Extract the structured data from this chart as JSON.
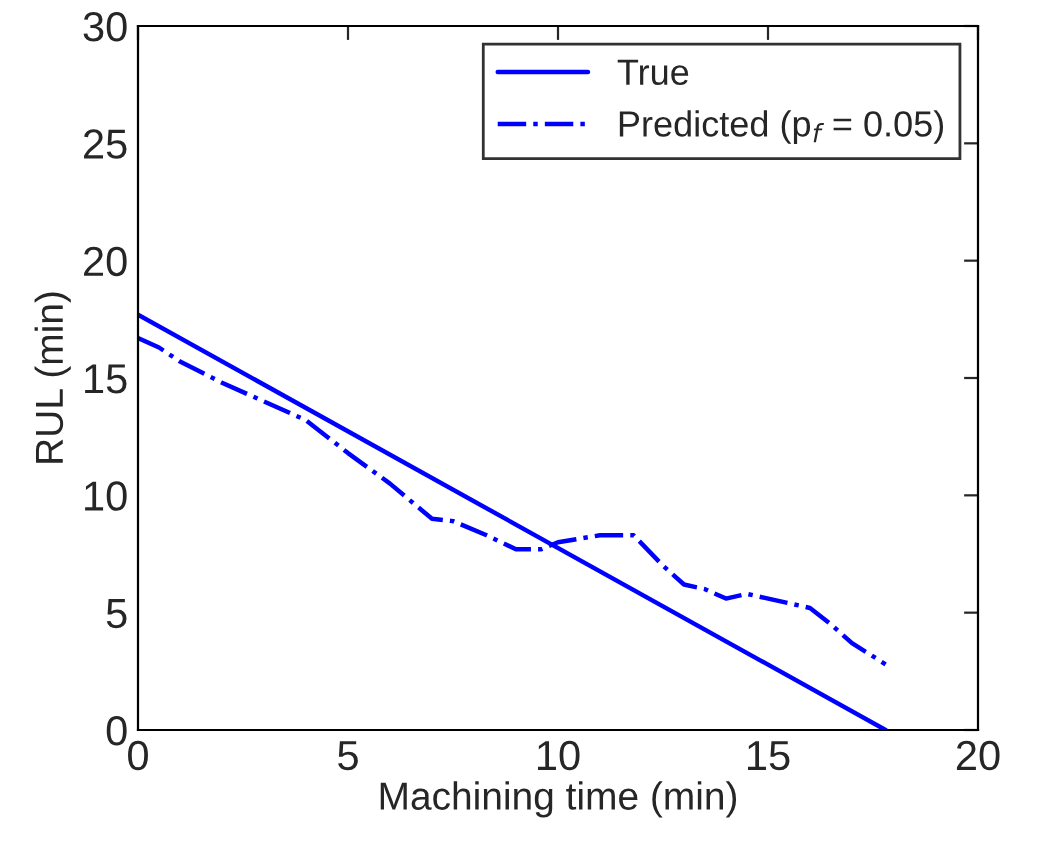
{
  "chart_data": {
    "type": "line",
    "xlabel": "Machining time (min)",
    "ylabel": "RUL (min)",
    "xlim": [
      0,
      20
    ],
    "xticks": [
      0,
      5,
      10,
      15,
      20
    ],
    "ylim": [
      0,
      30
    ],
    "yticks": [
      0,
      5,
      10,
      15,
      20,
      25,
      30
    ],
    "grid": false,
    "legend": "top right",
    "series": [
      {
        "name": "True",
        "color": "#0000ff",
        "line_style": "solid",
        "x": [
          0,
          17.8
        ],
        "values": [
          17.7,
          0
        ]
      },
      {
        "name": "Predicted (p$_{f}$ = 0.05)",
        "color": "#0000ff",
        "line_style": "dashdot",
        "x": [
          0,
          0.5,
          1,
          2,
          3,
          4,
          5,
          6,
          7,
          7.5,
          8.3,
          9,
          9.6,
          10,
          11,
          11.8,
          12.5,
          13,
          13.5,
          14,
          14.5,
          15.5,
          16,
          16.5,
          17,
          17.8
        ],
        "values": [
          16.7,
          16.3,
          15.7,
          14.8,
          14.0,
          13.2,
          11.8,
          10.5,
          9.0,
          8.9,
          8.3,
          7.7,
          7.7,
          8.0,
          8.3,
          8.3,
          7.0,
          6.2,
          6.0,
          5.6,
          5.8,
          5.4,
          5.2,
          4.5,
          3.7,
          2.8
        ]
      }
    ]
  }
}
